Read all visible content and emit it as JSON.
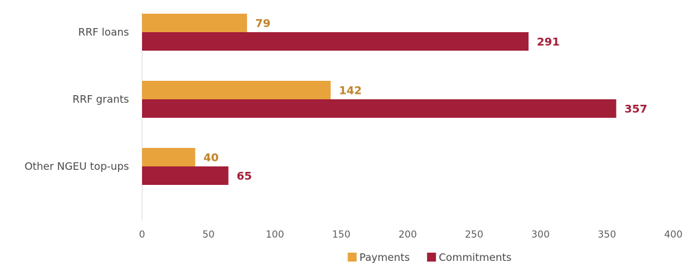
{
  "chart_data": {
    "type": "bar",
    "orientation": "horizontal",
    "categories": [
      "RRF loans",
      "RRF grants",
      "Other NGEU top-ups"
    ],
    "series": [
      {
        "name": "Payments",
        "values": [
          79,
          142,
          40
        ],
        "color": "#E8A33D",
        "label_color": "#C0842A"
      },
      {
        "name": "Commitments",
        "values": [
          291,
          357,
          65
        ],
        "color": "#A31E38",
        "label_color": "#A31E38"
      }
    ],
    "xlim": [
      0,
      400
    ],
    "xticks": [
      0,
      50,
      100,
      150,
      200,
      250,
      300,
      350,
      400
    ],
    "grid": false,
    "legend_position": "bottom",
    "axis_color": "#d9d9d9"
  }
}
